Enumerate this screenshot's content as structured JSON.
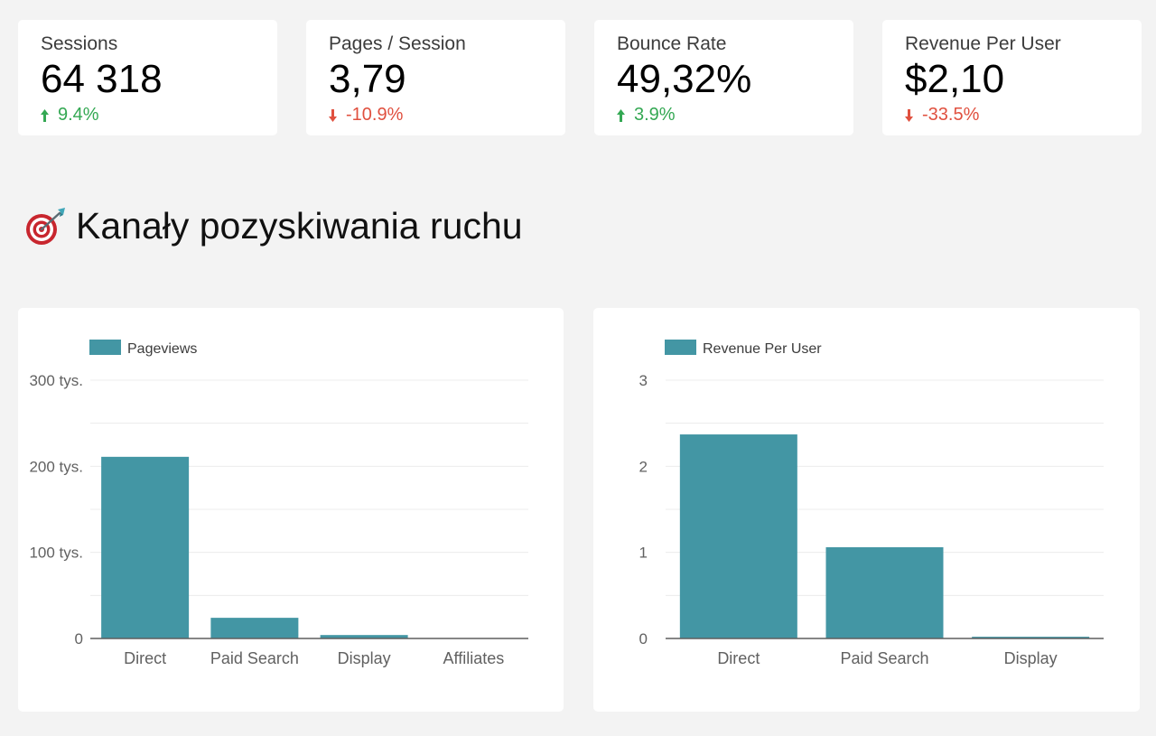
{
  "kpis": [
    {
      "label": "Sessions",
      "value": "64 318",
      "delta": "9.4%",
      "direction": "up"
    },
    {
      "label": "Pages / Session",
      "value": "3,79",
      "delta": "-10.9%",
      "direction": "down"
    },
    {
      "label": "Bounce Rate",
      "value": "49,32%",
      "delta": "3.9%",
      "direction": "up"
    },
    {
      "label": "Revenue Per User",
      "value": "$2,10",
      "delta": "-33.5%",
      "direction": "down"
    }
  ],
  "colors": {
    "up": "#34a853",
    "down": "#e0503f",
    "bar": "#4396a4",
    "grid": "#ececec",
    "axis": "#5f5f5f"
  },
  "section": {
    "icon": "target-icon",
    "title": "Kanały pozyskiwania ruchu"
  },
  "chart_data": [
    {
      "type": "bar",
      "legend": "Pageviews",
      "legend_position": "top-left",
      "categories": [
        "Direct",
        "Paid Search",
        "Display",
        "Affiliates"
      ],
      "values": [
        211000,
        24000,
        4000,
        0
      ],
      "y_tick_values": [
        0,
        100000,
        200000,
        300000
      ],
      "y_tick_labels": [
        "0",
        "100 tys.",
        "200 tys.",
        "300 tys."
      ],
      "ylim": [
        0,
        300000
      ],
      "grid": true
    },
    {
      "type": "bar",
      "legend": "Revenue Per User",
      "legend_position": "top-left",
      "categories": [
        "Direct",
        "Paid Search",
        "Display"
      ],
      "values": [
        2.37,
        1.06,
        0.02
      ],
      "y_tick_values": [
        0,
        1,
        2,
        3
      ],
      "y_tick_labels": [
        "0",
        "1",
        "2",
        "3"
      ],
      "ylim": [
        0,
        3
      ],
      "grid": true
    }
  ]
}
